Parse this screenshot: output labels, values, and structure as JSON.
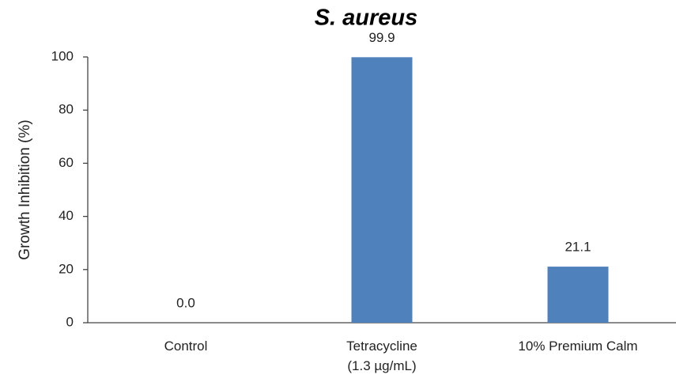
{
  "chart_data": {
    "type": "bar",
    "title": "S. aureus",
    "y_axis_label": "Growth Inhibition (%)",
    "categories": [
      "Control",
      "Tetracycline\n(1.3 µg/mL)",
      "10% Premium Calm"
    ],
    "values": [
      0,
      99.9,
      21.1
    ],
    "value_labels": [
      "0.0",
      "99.9",
      "21.1"
    ],
    "color": "#4f81bd",
    "ylim": [
      0,
      100
    ],
    "yticks": [
      0,
      20,
      40,
      60,
      80,
      100
    ],
    "grid": false
  }
}
